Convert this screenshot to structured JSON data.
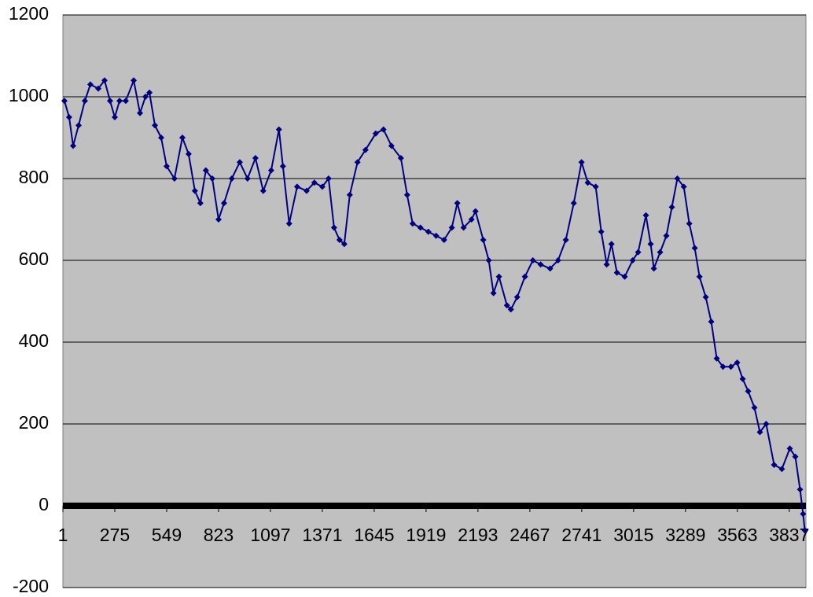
{
  "chart_data": {
    "type": "line",
    "x": [
      9,
      34,
      55,
      84,
      117,
      146,
      188,
      221,
      250,
      275,
      300,
      333,
      375,
      408,
      437,
      458,
      487,
      520,
      549,
      590,
      632,
      665,
      698,
      727,
      756,
      790,
      823,
      852,
      893,
      935,
      976,
      1018,
      1059,
      1101,
      1142,
      1163,
      1196,
      1238,
      1288,
      1329,
      1371,
      1404,
      1433,
      1462,
      1487,
      1516,
      1557,
      1599,
      1653,
      1694,
      1736,
      1786,
      1819,
      1848,
      1889,
      1931,
      1972,
      2014,
      2055,
      2084,
      2117,
      2159,
      2180,
      2221,
      2250,
      2275,
      2304,
      2346,
      2367,
      2400,
      2441,
      2483,
      2524,
      2574,
      2616,
      2657,
      2699,
      2740,
      2773,
      2815,
      2844,
      2873,
      2898,
      2927,
      2968,
      3010,
      3039,
      3080,
      3105,
      3122,
      3155,
      3188,
      3217,
      3246,
      3280,
      3309,
      3338,
      3363,
      3396,
      3425,
      3454,
      3487,
      3529,
      3562,
      3591,
      3620,
      3653,
      3682,
      3715,
      3757,
      3798,
      3840,
      3869,
      3894,
      3910,
      3919
    ],
    "series": [
      {
        "color": "#000080",
        "values": [
          990,
          950,
          880,
          930,
          990,
          1030,
          1020,
          1040,
          990,
          950,
          990,
          990,
          1040,
          960,
          1000,
          1010,
          930,
          900,
          830,
          800,
          900,
          860,
          770,
          740,
          820,
          800,
          700,
          740,
          800,
          840,
          800,
          850,
          770,
          820,
          920,
          830,
          690,
          780,
          770,
          790,
          780,
          800,
          680,
          650,
          640,
          760,
          840,
          870,
          910,
          920,
          880,
          850,
          760,
          690,
          680,
          670,
          660,
          650,
          680,
          740,
          680,
          700,
          720,
          650,
          600,
          520,
          560,
          490,
          480,
          510,
          560,
          600,
          590,
          580,
          600,
          650,
          740,
          840,
          790,
          780,
          670,
          590,
          640,
          570,
          560,
          600,
          620,
          710,
          640,
          580,
          620,
          660,
          730,
          800,
          780,
          690,
          630,
          560,
          510,
          450,
          360,
          340,
          340,
          350,
          310,
          280,
          240,
          180,
          200,
          100,
          90,
          140,
          120,
          40,
          -20,
          -60
        ]
      }
    ],
    "xlim": [
      1,
      3925
    ],
    "xticks": [
      1,
      275,
      549,
      823,
      1097,
      1371,
      1645,
      1919,
      2193,
      2467,
      2741,
      3015,
      3289,
      3563,
      3837
    ],
    "ylim": [
      -200,
      1200
    ],
    "yticks": [
      -200,
      0,
      200,
      400,
      600,
      800,
      1000,
      1200
    ],
    "grid": true
  }
}
